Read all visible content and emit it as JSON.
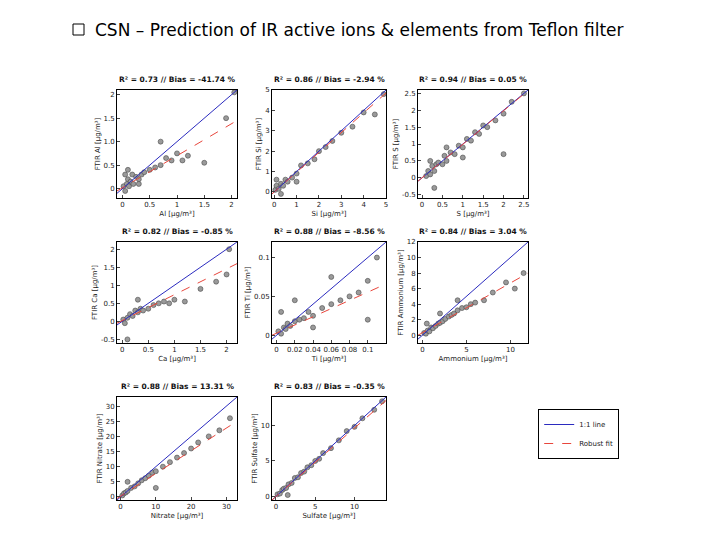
{
  "title": "CSN – Prediction of IR active ions & elements from Teflon filter",
  "legend": "lower right",
  "grid": false,
  "chart_data": [
    {
      "type": "scatter",
      "title": "R² = 0.73 // Bias = -41.74 %",
      "x_label": "Al [μg/m³]",
      "y_label": "FTIR Al [μg/m³]",
      "xlim": [
        -0.1,
        2.1
      ],
      "ylim": [
        -0.2,
        2.1
      ],
      "xticks": [
        0,
        0.5,
        1,
        1.5,
        2
      ],
      "yticks": [
        0,
        0.5,
        {
          "value": 1,
          "label": "1.0"
        },
        1.5,
        2
      ],
      "series": [
        {
          "type": "scatter",
          "marker": "circle",
          "color": "#9a9a9a",
          "x": [
            0.02,
            0.05,
            0.08,
            0.1,
            0.12,
            0.15,
            0.18,
            0.2,
            0.25,
            0.3,
            0.35,
            0.4,
            0.5,
            0.6,
            0.7,
            0.8,
            0.9,
            1.0,
            1.1,
            1.2,
            1.5,
            1.9,
            2.05,
            0.05,
            0.1,
            0.3,
            0.7
          ],
          "values": [
            0.05,
            -0.05,
            0.1,
            0.2,
            0.05,
            0.15,
            0.3,
            0.1,
            0.25,
            0.2,
            0.3,
            0.35,
            0.4,
            0.45,
            0.5,
            0.65,
            0.6,
            0.75,
            0.6,
            0.7,
            0.55,
            1.5,
            2.05,
            0.3,
            0.4,
            0.1,
            1.0
          ]
        },
        {
          "name": "1:1 line",
          "type": "line",
          "line_style": "solid",
          "color": "#2b2bbf",
          "x": [
            -0.1,
            2.1
          ],
          "values": [
            -0.1,
            2.1
          ]
        },
        {
          "name": "Robust fit",
          "type": "line",
          "line_style": "dashed",
          "color": "#e8463c",
          "x": [
            -0.1,
            2.1
          ],
          "values": [
            -0.05,
            1.45
          ]
        }
      ]
    },
    {
      "type": "scatter",
      "title": "R² = 0.86 // Bias = -2.94 %",
      "x_label": "Si [μg/m³]",
      "y_label": "FTIR Si [μg/m³]",
      "xlim": [
        -0.1,
        5
      ],
      "ylim": [
        -0.3,
        5
      ],
      "xticks": [
        0,
        1,
        2,
        3,
        4,
        5
      ],
      "yticks": [
        0,
        1,
        2,
        3,
        4,
        5
      ],
      "series": [
        {
          "type": "scatter",
          "marker": "circle",
          "color": "#9a9a9a",
          "x": [
            0.05,
            0.1,
            0.2,
            0.3,
            0.4,
            0.5,
            0.6,
            0.8,
            1.0,
            1.2,
            1.5,
            1.8,
            2.0,
            2.3,
            2.6,
            3.0,
            3.5,
            4.0,
            4.5,
            4.9,
            0.1,
            0.3,
            1.0
          ],
          "values": [
            0.1,
            0.3,
            0.15,
            0.4,
            0.3,
            0.6,
            0.5,
            0.7,
            0.9,
            1.3,
            1.4,
            1.6,
            2.0,
            2.2,
            2.5,
            2.9,
            3.2,
            3.9,
            3.8,
            4.8,
            0.6,
            -0.1,
            0.5
          ]
        },
        {
          "name": "1:1 line",
          "type": "line",
          "line_style": "solid",
          "color": "#2b2bbf",
          "x": [
            -0.1,
            5
          ],
          "values": [
            -0.1,
            5
          ]
        },
        {
          "name": "Robust fit",
          "type": "line",
          "line_style": "dashed",
          "color": "#e8463c",
          "x": [
            -0.1,
            5
          ],
          "values": [
            -0.1,
            4.85
          ]
        }
      ]
    },
    {
      "type": "scatter",
      "title": "R² = 0.94 // Bias = 0.05 %",
      "x_label": "S [μg/m³]",
      "y_label": "FTIR S [μg/m³]",
      "xlim": [
        -0.1,
        2.6
      ],
      "ylim": [
        -0.6,
        2.6
      ],
      "xticks": [
        0,
        0.5,
        1,
        1.5,
        2,
        2.5
      ],
      "yticks": [
        -0.5,
        0,
        0.5,
        1,
        1.5,
        2,
        2.5
      ],
      "series": [
        {
          "type": "scatter",
          "marker": "circle",
          "color": "#9a9a9a",
          "x": [
            0.1,
            0.15,
            0.2,
            0.25,
            0.3,
            0.35,
            0.4,
            0.5,
            0.55,
            0.6,
            0.7,
            0.8,
            0.9,
            1.0,
            1.1,
            1.2,
            1.3,
            1.4,
            1.5,
            1.6,
            1.8,
            2.0,
            2.2,
            2.5,
            0.3,
            0.6,
            1.0,
            2.0,
            0.2
          ],
          "values": [
            0.05,
            0.2,
            0.1,
            0.35,
            0.2,
            0.4,
            0.45,
            0.4,
            0.65,
            0.5,
            0.75,
            0.7,
            0.95,
            0.9,
            1.15,
            1.1,
            1.35,
            1.3,
            1.55,
            1.5,
            1.7,
            1.9,
            2.25,
            2.5,
            -0.3,
            0.9,
            0.6,
            0.7,
            0.5
          ]
        },
        {
          "name": "1:1 line",
          "type": "line",
          "line_style": "solid",
          "color": "#2b2bbf",
          "x": [
            -0.1,
            2.6
          ],
          "values": [
            -0.1,
            2.6
          ]
        },
        {
          "name": "Robust fit",
          "type": "line",
          "line_style": "dashed",
          "color": "#e8463c",
          "x": [
            -0.1,
            2.6
          ],
          "values": [
            -0.1,
            2.58
          ]
        }
      ]
    },
    {
      "type": "scatter",
      "title": "R² = 0.82 // Bias = -0.85 %",
      "x_label": "Ca [μg/m³]",
      "y_label": "FTIR Ca [μg/m³]",
      "xlim": [
        -0.1,
        2.2
      ],
      "ylim": [
        -0.6,
        2.2
      ],
      "xticks": [
        0,
        0.5,
        1,
        1.5,
        2
      ],
      "yticks": [
        -0.5,
        0,
        0.5,
        1,
        1.5,
        2
      ],
      "series": [
        {
          "type": "scatter",
          "marker": "circle",
          "color": "#9a9a9a",
          "x": [
            0.02,
            0.05,
            0.1,
            0.15,
            0.2,
            0.25,
            0.3,
            0.35,
            0.4,
            0.5,
            0.6,
            0.7,
            0.8,
            0.9,
            1.0,
            1.2,
            1.5,
            1.8,
            2.0,
            2.05,
            0.1,
            0.3
          ],
          "values": [
            0.05,
            -0.05,
            0.1,
            0.2,
            0.15,
            0.3,
            0.25,
            0.35,
            0.3,
            0.35,
            0.45,
            0.5,
            0.55,
            0.5,
            0.6,
            0.55,
            0.9,
            1.1,
            1.3,
            2.0,
            -0.5,
            0.6
          ]
        },
        {
          "name": "1:1 line",
          "type": "line",
          "line_style": "solid",
          "color": "#2b2bbf",
          "x": [
            -0.1,
            2.2
          ],
          "values": [
            -0.1,
            2.2
          ]
        },
        {
          "name": "Robust fit",
          "type": "line",
          "line_style": "dashed",
          "color": "#e8463c",
          "x": [
            -0.1,
            2.2
          ],
          "values": [
            -0.05,
            1.6
          ]
        }
      ]
    },
    {
      "type": "scatter",
      "title": "R² = 0.88 // Bias = -8.56 %",
      "x_label": "Ti [μg/m³]",
      "y_label": "FTIR Ti [μg/m³]",
      "xlim": [
        -0.005,
        0.12
      ],
      "ylim": [
        -0.01,
        0.12
      ],
      "xticks": [
        0,
        0.02,
        0.04,
        0.06,
        0.08,
        0.1
      ],
      "yticks": [
        0,
        0.05,
        0.1
      ],
      "series": [
        {
          "type": "scatter",
          "marker": "circle",
          "color": "#9a9a9a",
          "x": [
            0.002,
            0.005,
            0.008,
            0.01,
            0.012,
            0.015,
            0.02,
            0.025,
            0.03,
            0.035,
            0.04,
            0.05,
            0.06,
            0.07,
            0.08,
            0.09,
            0.1,
            0.11,
            0.005,
            0.02,
            0.04,
            0.06,
            0.1
          ],
          "values": [
            0.005,
            0.002,
            0.01,
            0.008,
            0.015,
            0.012,
            0.018,
            0.02,
            0.022,
            0.03,
            0.025,
            0.035,
            0.04,
            0.045,
            0.05,
            0.055,
            0.07,
            0.1,
            0.03,
            0.045,
            0.01,
            0.075,
            0.02
          ]
        },
        {
          "name": "1:1 line",
          "type": "line",
          "line_style": "solid",
          "color": "#2b2bbf",
          "x": [
            -0.005,
            0.12
          ],
          "values": [
            -0.005,
            0.12
          ]
        },
        {
          "name": "Robust fit",
          "type": "line",
          "line_style": "dashed",
          "color": "#e8463c",
          "x": [
            -0.005,
            0.12
          ],
          "values": [
            0.0,
            0.066
          ]
        }
      ]
    },
    {
      "type": "scatter",
      "title": "R² = 0.84 // Bias = 3.04 %",
      "x_label": "Ammonium [μg/m³]",
      "y_label": "FTIR Ammonium [μg/m³]",
      "xlim": [
        -0.5,
        12
      ],
      "ylim": [
        -1,
        12
      ],
      "xticks": [
        0,
        5,
        10
      ],
      "yticks": [
        0,
        2,
        4,
        6,
        8,
        10,
        12
      ],
      "series": [
        {
          "type": "scatter",
          "marker": "circle",
          "color": "#9a9a9a",
          "x": [
            0.2,
            0.4,
            0.6,
            0.8,
            1,
            1.2,
            1.5,
            1.8,
            2,
            2.3,
            2.6,
            3,
            3.3,
            3.6,
            4,
            4.5,
            5,
            5.5,
            6,
            7,
            8,
            9.5,
            10.5,
            11.5,
            0.5,
            2,
            4
          ],
          "values": [
            0.3,
            0.2,
            0.6,
            0.5,
            1,
            0.9,
            1.2,
            1.5,
            1.6,
            1.8,
            2.1,
            2.4,
            2.6,
            2.8,
            3.2,
            3.5,
            3.6,
            4.0,
            4.2,
            4.5,
            5.5,
            6.8,
            6.0,
            8.0,
            1.5,
            2.8,
            4.5
          ]
        },
        {
          "name": "1:1 line",
          "type": "line",
          "line_style": "solid",
          "color": "#2b2bbf",
          "x": [
            -0.5,
            12
          ],
          "values": [
            -0.5,
            12
          ]
        },
        {
          "name": "Robust fit",
          "type": "line",
          "line_style": "dashed",
          "color": "#e8463c",
          "x": [
            -0.5,
            12
          ],
          "values": [
            0.0,
            8.0
          ]
        }
      ]
    },
    {
      "type": "scatter",
      "title": "R² = 0.88 // Bias = 13.31 %",
      "x_label": "Nitrate [μg/m³]",
      "y_label": "FTIR Nitrate [μg/m³]",
      "xlim": [
        -1,
        33
      ],
      "ylim": [
        -1,
        33
      ],
      "xticks": [
        0,
        10,
        20,
        30
      ],
      "yticks": [
        0,
        5,
        10,
        15,
        20,
        25,
        30
      ],
      "series": [
        {
          "type": "scatter",
          "marker": "circle",
          "color": "#9a9a9a",
          "x": [
            0.5,
            1,
            1.5,
            2,
            3,
            4,
            5,
            6,
            7,
            8,
            9,
            10,
            12,
            14,
            16,
            18,
            20,
            22,
            25,
            28,
            31,
            2,
            10
          ],
          "values": [
            0.5,
            1.2,
            1.5,
            2,
            3,
            3.5,
            4.5,
            5.5,
            6.2,
            7,
            8,
            8.5,
            10,
            11.5,
            13,
            14.5,
            16,
            18,
            20,
            22,
            26,
            5,
            3
          ]
        },
        {
          "name": "1:1 line",
          "type": "line",
          "line_style": "solid",
          "color": "#2b2bbf",
          "x": [
            -1,
            33
          ],
          "values": [
            -1,
            33
          ]
        },
        {
          "name": "Robust fit",
          "type": "line",
          "line_style": "dashed",
          "color": "#e8463c",
          "x": [
            -1,
            33
          ],
          "values": [
            -0.5,
            25
          ]
        }
      ]
    },
    {
      "type": "scatter",
      "title": "R² = 0.83 // Bias = -0.35 %",
      "x_label": "Sulfate [μg/m³]",
      "y_label": "FTIR Sulfate [μg/m³]",
      "xlim": [
        -0.5,
        14
      ],
      "ylim": [
        -0.5,
        14
      ],
      "xticks": [
        0,
        5,
        10
      ],
      "yticks": [
        0,
        5,
        10
      ],
      "series": [
        {
          "type": "scatter",
          "marker": "circle",
          "color": "#9a9a9a",
          "x": [
            0.2,
            0.5,
            0.8,
            1,
            1.3,
            1.6,
            2,
            2.4,
            2.8,
            3.2,
            3.6,
            4,
            4.5,
            5,
            5.5,
            6,
            7,
            8,
            9,
            10,
            11,
            12.5,
            13.5,
            1.5
          ],
          "values": [
            0.3,
            0.4,
            0.9,
            1.1,
            1.2,
            1.7,
            1.9,
            2.6,
            2.7,
            3.3,
            3.5,
            4.1,
            4.4,
            5.0,
            5.3,
            6.1,
            6.8,
            7.9,
            9.2,
            9.8,
            11.0,
            12.2,
            13.4,
            0.2
          ]
        },
        {
          "name": "1:1 line",
          "type": "line",
          "line_style": "solid",
          "color": "#2b2bbf",
          "x": [
            -0.5,
            14
          ],
          "values": [
            -0.5,
            14
          ]
        },
        {
          "name": "Robust fit",
          "type": "line",
          "line_style": "dashed",
          "color": "#e8463c",
          "x": [
            -0.5,
            14
          ],
          "values": [
            -0.5,
            13.5
          ]
        }
      ]
    }
  ]
}
